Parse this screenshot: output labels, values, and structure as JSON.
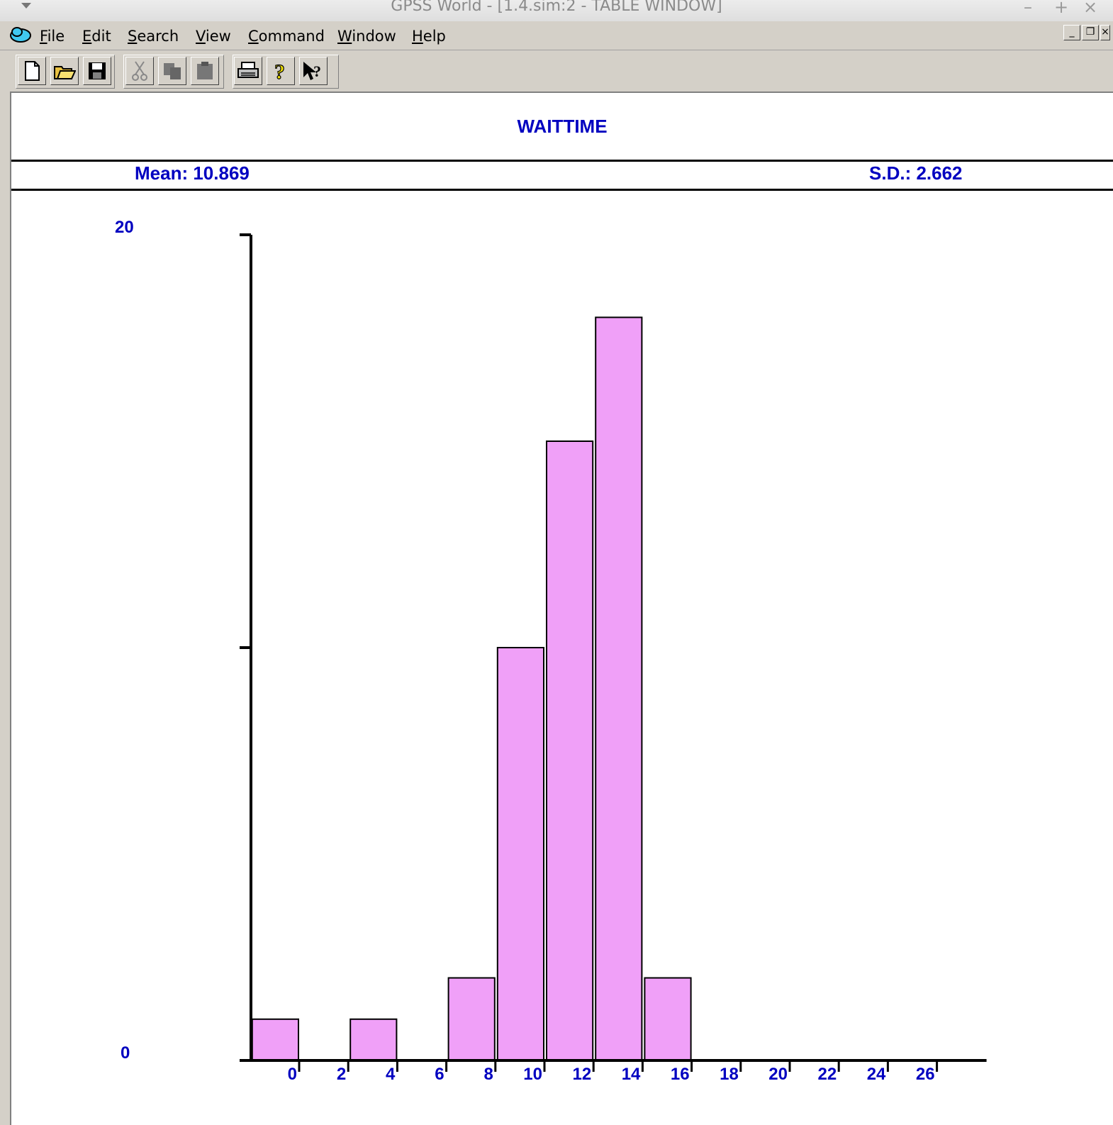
{
  "window": {
    "title": "GPSS World - [1.4.sim:2  -  TABLE WINDOW]",
    "controls": [
      "minimize-icon",
      "maximize-icon",
      "close-icon"
    ]
  },
  "menu": {
    "items": [
      "File",
      "Edit",
      "Search",
      "View",
      "Command",
      "Window",
      "Help"
    ]
  },
  "toolbar": {
    "buttons": [
      "new-icon",
      "open-icon",
      "save-icon",
      "cut-icon",
      "copy-icon",
      "paste-icon",
      "print-icon",
      "help-icon",
      "context-help-icon"
    ]
  },
  "colors": {
    "bar_fill": "#f0a0f8",
    "text_blue": "#0000c0"
  },
  "table": {
    "name": "WAITTIME",
    "mean_label": "Mean: 10.869",
    "sd_label": "S.D.: 2.662"
  },
  "chart_data": {
    "type": "bar",
    "title": "WAITTIME",
    "xlabel": "",
    "ylabel": "",
    "ylim": [
      0,
      20
    ],
    "y_tick_labels": [
      "0",
      "20"
    ],
    "x_tick_labels": [
      "0",
      "2",
      "4",
      "6",
      "8",
      "10",
      "12",
      "14",
      "16",
      "18",
      "20",
      "22",
      "24",
      "26"
    ],
    "bin_width": 2,
    "bins": [
      {
        "upper": 0,
        "count": 1
      },
      {
        "upper": 2,
        "count": 0
      },
      {
        "upper": 4,
        "count": 1
      },
      {
        "upper": 6,
        "count": 0
      },
      {
        "upper": 8,
        "count": 2
      },
      {
        "upper": 10,
        "count": 10
      },
      {
        "upper": 12,
        "count": 15
      },
      {
        "upper": 14,
        "count": 18
      },
      {
        "upper": 16,
        "count": 2
      }
    ],
    "grid": false
  }
}
